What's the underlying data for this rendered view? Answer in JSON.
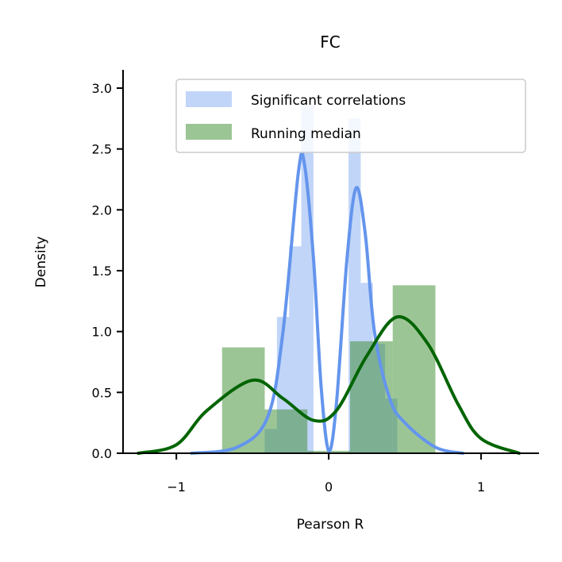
{
  "chart_data": {
    "type": "histogram",
    "title": "FC",
    "xlabel": "Pearson R",
    "ylabel": "Density",
    "xlim": [
      -1.35,
      1.38
    ],
    "ylim": [
      0,
      3.15
    ],
    "x_ticks": [
      {
        "value": -1,
        "label": "−1"
      },
      {
        "value": 0,
        "label": "0"
      },
      {
        "value": 1,
        "label": "1"
      }
    ],
    "y_ticks": [
      {
        "value": 0.0,
        "label": "0.0"
      },
      {
        "value": 0.5,
        "label": "0.5"
      },
      {
        "value": 1.0,
        "label": "1.0"
      },
      {
        "value": 1.5,
        "label": "1.5"
      },
      {
        "value": 2.0,
        "label": "2.0"
      },
      {
        "value": 2.5,
        "label": "2.5"
      },
      {
        "value": 3.0,
        "label": "3.0"
      }
    ],
    "legend_position": "top-right",
    "series": [
      {
        "name": "Significant correlations",
        "color": "#6495ed",
        "bar_alpha": 0.4,
        "bins": [
          {
            "x0": -0.42,
            "x1": -0.34,
            "value": 0.2
          },
          {
            "x0": -0.34,
            "x1": -0.26,
            "value": 1.12
          },
          {
            "x0": -0.26,
            "x1": -0.18,
            "value": 1.7
          },
          {
            "x0": -0.18,
            "x1": -0.1,
            "value": 2.85
          },
          {
            "x0": 0.13,
            "x1": 0.21,
            "value": 2.75
          },
          {
            "x0": 0.21,
            "x1": 0.29,
            "value": 1.4
          },
          {
            "x0": 0.29,
            "x1": 0.37,
            "value": 0.9
          },
          {
            "x0": 0.37,
            "x1": 0.45,
            "value": 0.45
          }
        ],
        "kde": [
          [
            -0.9,
            0.0
          ],
          [
            -0.6,
            0.05
          ],
          [
            -0.4,
            0.3
          ],
          [
            -0.3,
            1.0
          ],
          [
            -0.2,
            2.3
          ],
          [
            -0.16,
            2.38
          ],
          [
            -0.1,
            1.6
          ],
          [
            -0.05,
            0.55
          ],
          [
            0.0,
            0.02
          ],
          [
            0.05,
            0.4
          ],
          [
            0.12,
            1.6
          ],
          [
            0.18,
            2.18
          ],
          [
            0.24,
            1.8
          ],
          [
            0.3,
            1.0
          ],
          [
            0.4,
            0.45
          ],
          [
            0.5,
            0.25
          ],
          [
            0.7,
            0.05
          ],
          [
            0.88,
            0.0
          ]
        ]
      },
      {
        "name": "Running median",
        "color": "#006400",
        "bar_color": "#3a8c2e",
        "bar_alpha": 0.5,
        "bins": [
          {
            "x0": -0.7,
            "x1": -0.42,
            "value": 0.87
          },
          {
            "x0": -0.42,
            "x1": -0.14,
            "value": 0.36
          },
          {
            "x0": -0.14,
            "x1": 0.14,
            "value": 0.02
          },
          {
            "x0": 0.14,
            "x1": 0.42,
            "value": 0.92
          },
          {
            "x0": 0.42,
            "x1": 0.7,
            "value": 1.38
          }
        ],
        "kde": [
          [
            -1.25,
            0.0
          ],
          [
            -1.0,
            0.07
          ],
          [
            -0.8,
            0.35
          ],
          [
            -0.5,
            0.6
          ],
          [
            -0.3,
            0.45
          ],
          [
            -0.1,
            0.27
          ],
          [
            0.05,
            0.35
          ],
          [
            0.25,
            0.8
          ],
          [
            0.45,
            1.12
          ],
          [
            0.65,
            0.9
          ],
          [
            0.85,
            0.4
          ],
          [
            1.0,
            0.12
          ],
          [
            1.25,
            0.0
          ]
        ]
      }
    ]
  }
}
